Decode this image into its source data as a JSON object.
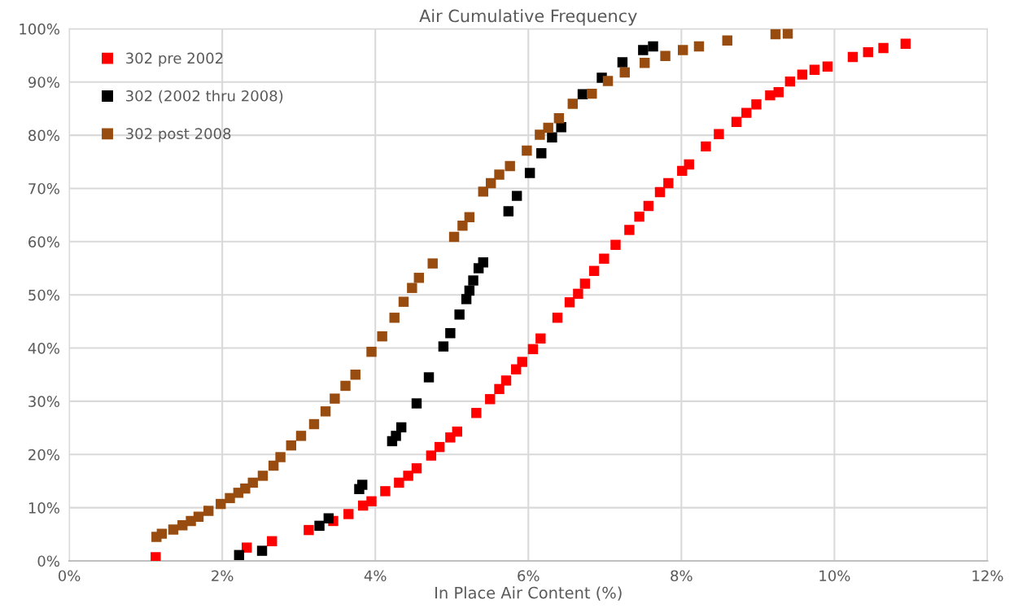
{
  "chart_data": {
    "type": "scatter",
    "title": "Air Cumulative Frequency",
    "xlabel": "In Place Air Content (%)",
    "xlim": [
      0,
      12
    ],
    "xticks": [
      {
        "value": 0,
        "label": "0%"
      },
      {
        "value": 2,
        "label": "2%"
      },
      {
        "value": 4,
        "label": "4%"
      },
      {
        "value": 6,
        "label": "6%"
      },
      {
        "value": 8,
        "label": "8%"
      },
      {
        "value": 10,
        "label": "10%"
      },
      {
        "value": 12,
        "label": "12%"
      }
    ],
    "ylim": [
      0,
      100
    ],
    "yticks": [
      {
        "value": 0,
        "label": "0%"
      },
      {
        "value": 10,
        "label": "10%"
      },
      {
        "value": 20,
        "label": "20%"
      },
      {
        "value": 30,
        "label": "30%"
      },
      {
        "value": 40,
        "label": "40%"
      },
      {
        "value": 50,
        "label": "50%"
      },
      {
        "value": 60,
        "label": "60%"
      },
      {
        "value": 70,
        "label": "70%"
      },
      {
        "value": 80,
        "label": "80%"
      },
      {
        "value": 90,
        "label": "90%"
      },
      {
        "value": 100,
        "label": "100%"
      }
    ],
    "grid": true,
    "legend": "top left",
    "marker": "square",
    "series": [
      {
        "name": "302 pre 2002",
        "color": "#ff0000",
        "x": [
          1.13,
          2.32,
          2.65,
          3.13,
          3.45,
          3.65,
          3.84,
          3.95,
          4.13,
          4.31,
          4.43,
          4.54,
          4.73,
          4.84,
          4.98,
          5.07,
          5.32,
          5.5,
          5.62,
          5.71,
          5.84,
          5.92,
          6.06,
          6.16,
          6.38,
          6.54,
          6.65,
          6.74,
          6.86,
          6.99,
          7.14,
          7.32,
          7.45,
          7.57,
          7.72,
          7.83,
          8.01,
          8.1,
          8.32,
          8.49,
          8.72,
          8.85,
          8.98,
          9.16,
          9.27,
          9.42,
          9.58,
          9.74,
          9.91,
          10.24,
          10.44,
          10.64,
          10.93
        ],
        "values": [
          0.7,
          2.5,
          3.7,
          5.8,
          7.5,
          8.8,
          10.4,
          11.2,
          13.1,
          14.7,
          16.0,
          17.4,
          19.8,
          21.4,
          23.2,
          24.3,
          27.8,
          30.4,
          32.3,
          33.9,
          36.0,
          37.4,
          39.8,
          41.8,
          45.7,
          48.6,
          50.2,
          52.1,
          54.5,
          56.8,
          59.4,
          62.2,
          64.7,
          66.7,
          69.3,
          71.0,
          73.3,
          74.5,
          77.9,
          80.2,
          82.5,
          84.2,
          85.8,
          87.5,
          88.1,
          90.1,
          91.4,
          92.3,
          92.9,
          94.7,
          95.6,
          96.4,
          97.2
        ]
      },
      {
        "name": "302 (2002 thru 2008)",
        "color": "#000000",
        "x": [
          2.22,
          2.52,
          3.27,
          3.39,
          3.79,
          3.83,
          4.22,
          4.27,
          4.34,
          4.54,
          4.7,
          4.89,
          4.98,
          5.1,
          5.19,
          5.23,
          5.28,
          5.35,
          5.41,
          5.74,
          5.85,
          6.02,
          6.17,
          6.31,
          6.43,
          6.63,
          6.71,
          6.96,
          7.23,
          7.5,
          7.63
        ],
        "values": [
          1.1,
          1.9,
          6.6,
          8.0,
          13.5,
          14.3,
          22.5,
          23.5,
          25.1,
          29.6,
          34.5,
          40.3,
          42.8,
          46.3,
          49.2,
          50.8,
          52.7,
          55.0,
          56.1,
          65.7,
          68.6,
          72.9,
          76.6,
          79.6,
          81.5,
          null,
          87.7,
          90.8,
          93.7,
          96.0,
          96.7
        ]
      },
      {
        "name": "302 post 2008",
        "color": "#994c0f",
        "x": [
          1.14,
          1.21,
          1.36,
          1.48,
          1.59,
          1.69,
          1.82,
          1.98,
          2.1,
          2.21,
          2.3,
          2.4,
          2.53,
          2.67,
          2.76,
          2.9,
          3.03,
          3.2,
          3.35,
          3.47,
          3.61,
          3.74,
          3.95,
          4.09,
          4.25,
          4.37,
          4.48,
          4.57,
          4.75,
          5.03,
          5.14,
          5.23,
          5.41,
          5.51,
          5.62,
          5.76,
          5.98,
          6.15,
          6.26,
          6.4,
          6.58,
          6.83,
          7.04,
          7.26,
          7.52,
          7.79,
          8.02,
          8.23,
          8.6,
          9.23,
          9.39
        ],
        "values": [
          4.5,
          5.1,
          5.9,
          6.7,
          7.5,
          8.3,
          9.4,
          10.7,
          11.8,
          12.8,
          13.6,
          14.7,
          16.0,
          17.9,
          19.5,
          21.7,
          23.5,
          25.7,
          28.1,
          30.5,
          32.9,
          35.0,
          39.3,
          42.2,
          45.7,
          48.7,
          51.3,
          53.2,
          55.9,
          60.9,
          63.0,
          64.6,
          69.4,
          71.0,
          72.6,
          74.2,
          77.1,
          80.1,
          81.4,
          83.2,
          85.9,
          87.8,
          90.2,
          91.8,
          93.6,
          94.9,
          96.0,
          96.7,
          97.8,
          99.0,
          99.1
        ]
      }
    ]
  }
}
